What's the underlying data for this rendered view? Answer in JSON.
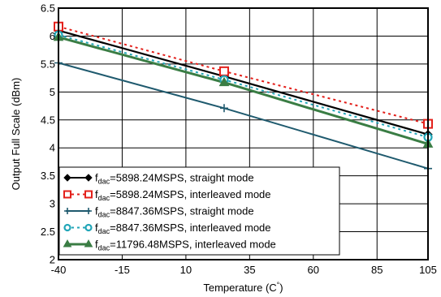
{
  "chart_data": {
    "type": "line",
    "title": "",
    "xlabel": "Temperature (C°)",
    "ylabel": "Output Full Scale (dBm)",
    "xlim": [
      -40,
      105
    ],
    "ylim": [
      2,
      6.5
    ],
    "xticks": [
      -40,
      -15,
      10,
      35,
      60,
      85,
      105
    ],
    "yticks": [
      2,
      2.5,
      3,
      3.5,
      4,
      4.5,
      5,
      5.5,
      6,
      6.5
    ],
    "grid": true,
    "legend_placement": "bottom-left",
    "series": [
      {
        "name_prefix": "f",
        "name_sub": "dac",
        "name_rest": "=5898.24MSPS, straight mode",
        "color": "#000000",
        "dash": "",
        "marker": "diamond",
        "x": [
          -40,
          25,
          105
        ],
        "y": [
          6.1,
          5.28,
          4.24
        ]
      },
      {
        "name_prefix": "f",
        "name_sub": "dac",
        "name_rest": "=5898.24MSPS, interleaved mode",
        "color": "#e3201b",
        "dash": "3,4",
        "marker": "square",
        "x": [
          -40,
          25,
          105
        ],
        "y": [
          6.17,
          5.37,
          4.43
        ]
      },
      {
        "name_prefix": "f",
        "name_sub": "dac",
        "name_rest": "=8847.36MSPS, straight mode",
        "color": "#1f5a6e",
        "dash": "",
        "marker": "plus",
        "x": [
          -40,
          25,
          105
        ],
        "y": [
          5.52,
          4.71,
          3.63
        ]
      },
      {
        "name_prefix": "f",
        "name_sub": "dac",
        "name_rest": "=8847.36MSPS, interleaved mode",
        "color": "#22a6b8",
        "dash": "3,4",
        "marker": "circle",
        "x": [
          -40,
          25,
          105
        ],
        "y": [
          6.02,
          5.22,
          4.19
        ]
      },
      {
        "name_prefix": "f",
        "name_sub": "dac",
        "name_rest": "=11796.48MSPS, interleaved mode",
        "color": "#3a7d44",
        "dash": "",
        "marker": "triangle",
        "x": [
          -40,
          25,
          105
        ],
        "y": [
          5.98,
          5.17,
          4.07
        ]
      }
    ]
  }
}
